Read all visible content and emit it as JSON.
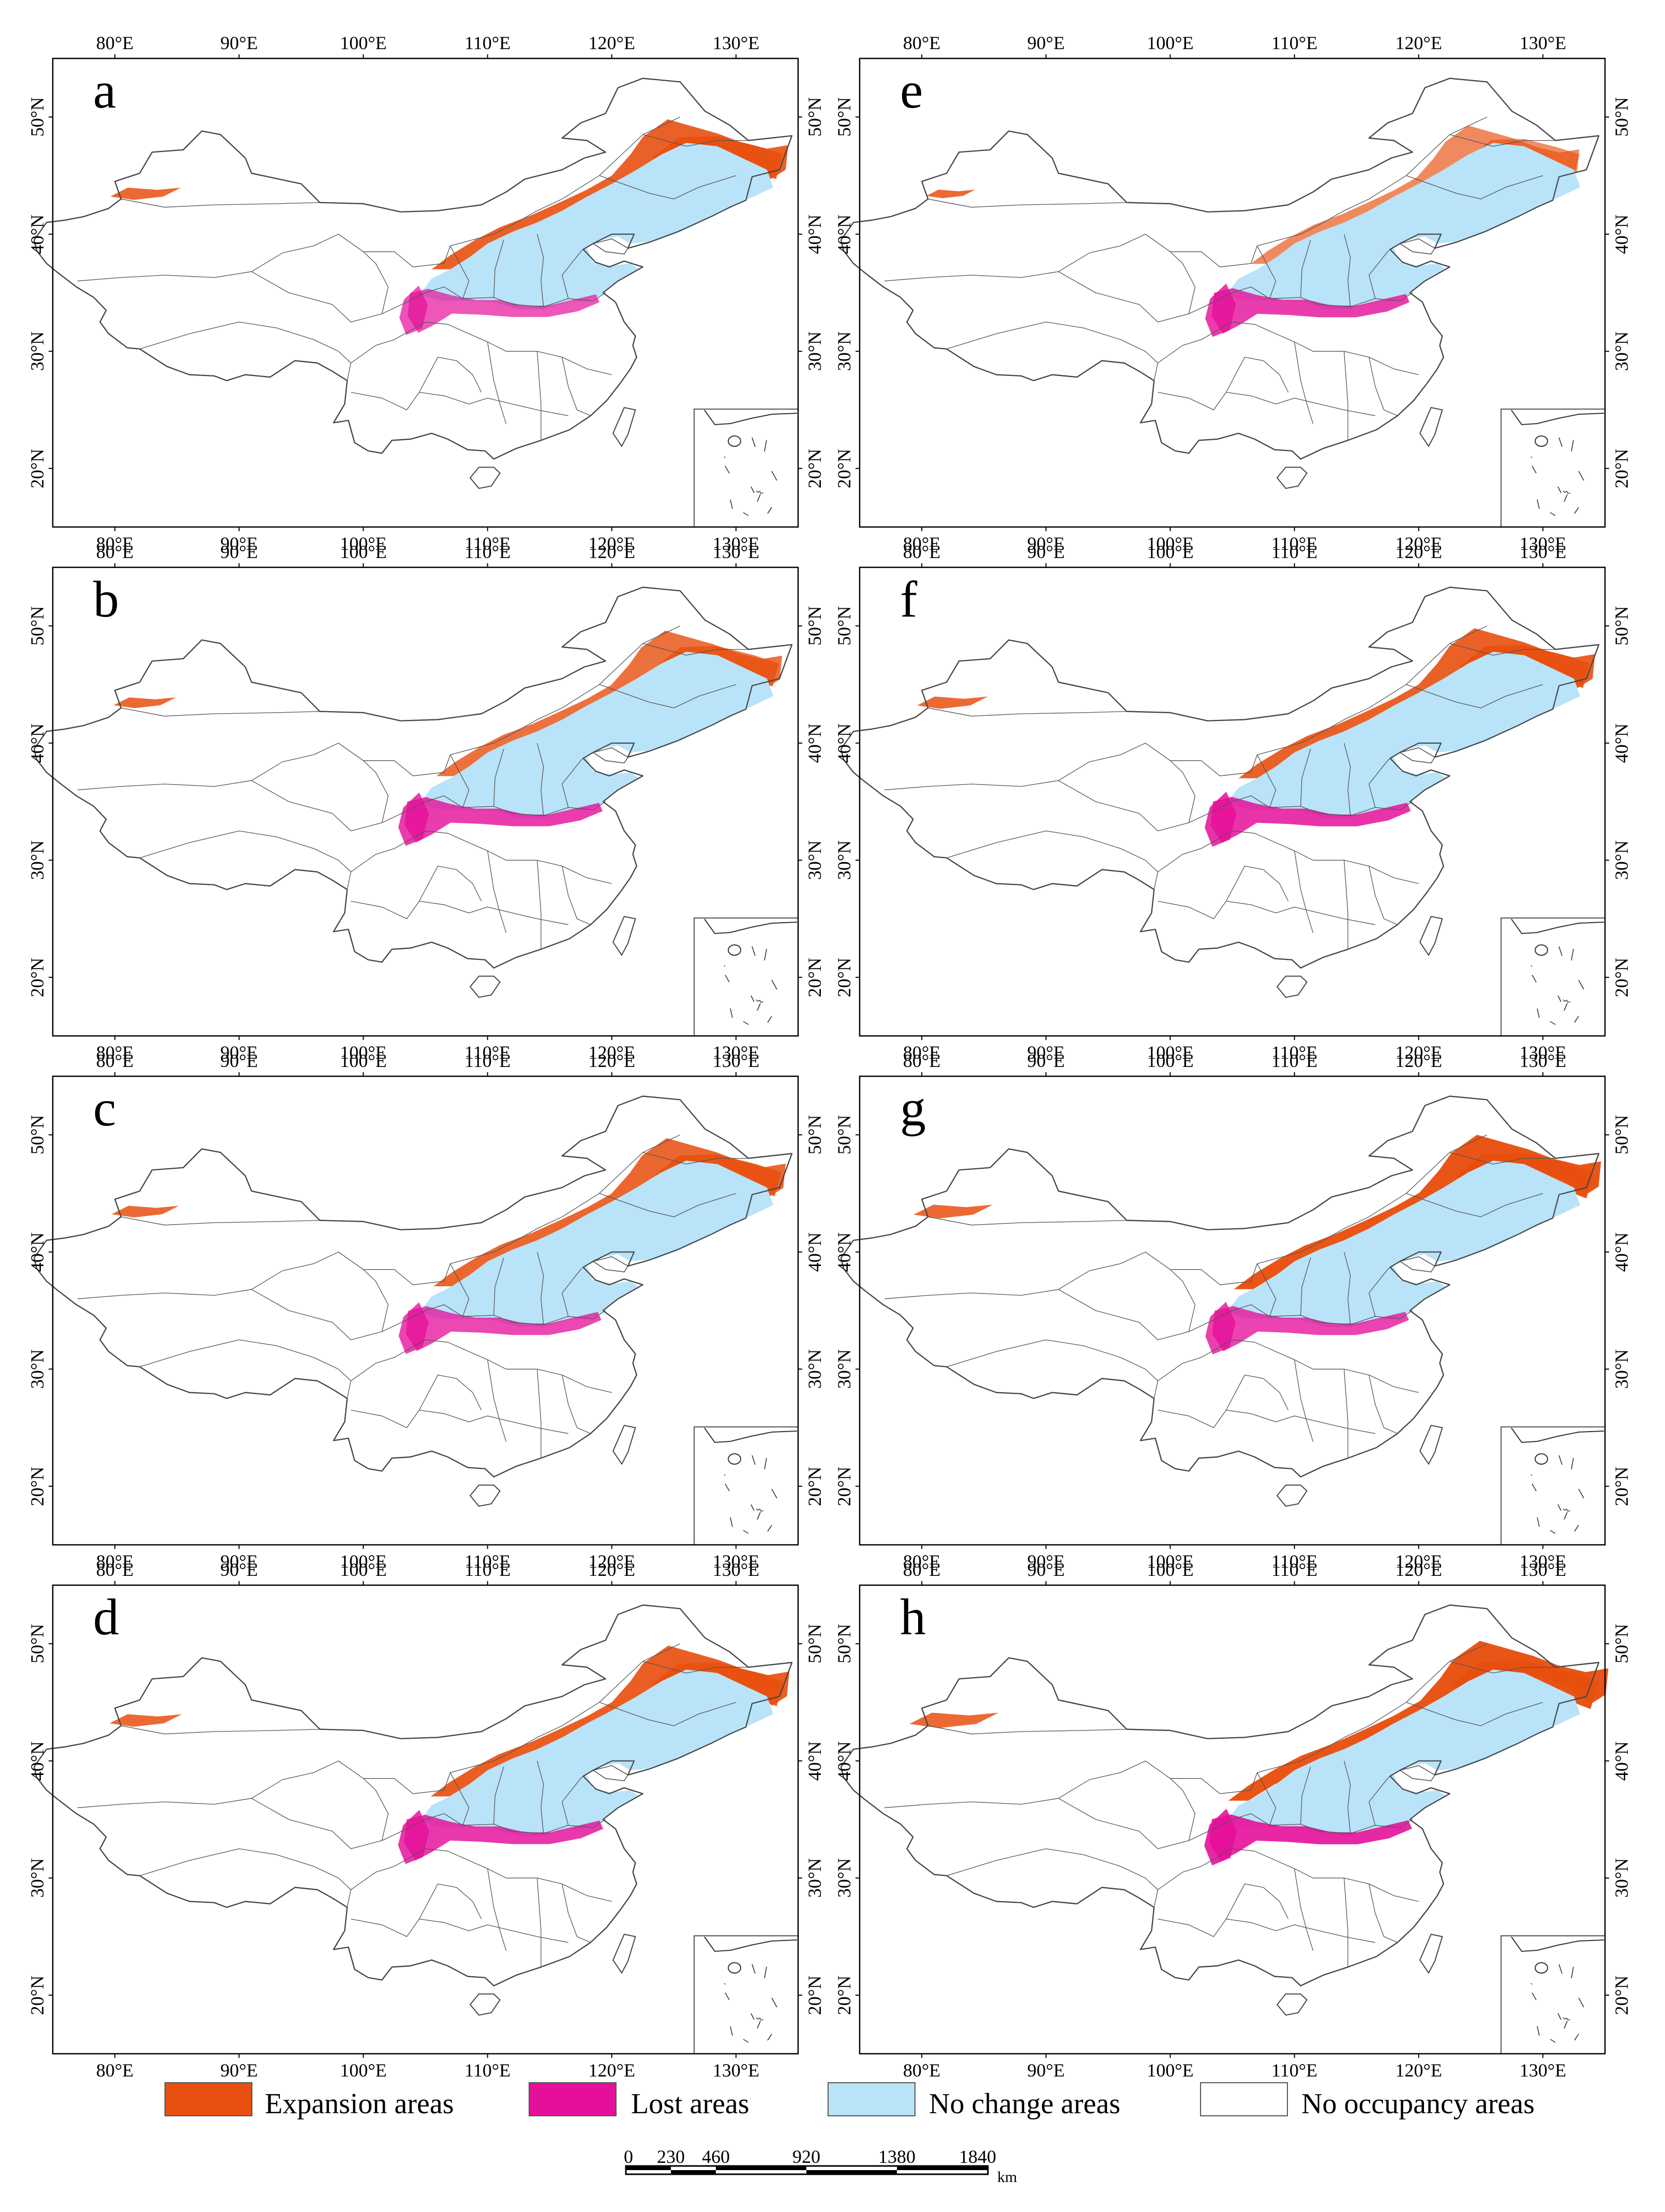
{
  "figure": {
    "lon_ticks": [
      "80°E",
      "90°E",
      "100°E",
      "110°E",
      "120°E",
      "130°E"
    ],
    "lat_ticks": [
      "20°N",
      "30°N",
      "40°N",
      "50°N"
    ],
    "panels": [
      {
        "label": "a",
        "expansion": 1.0,
        "loss": 0.55
      },
      {
        "label": "b",
        "expansion": 0.75,
        "loss": 0.8
      },
      {
        "label": "c",
        "expansion": 0.9,
        "loss": 0.7
      },
      {
        "label": "d",
        "expansion": 1.05,
        "loss": 0.85
      },
      {
        "label": "e",
        "expansion": 0.35,
        "loss": 0.8
      },
      {
        "label": "f",
        "expansion": 1.0,
        "loss": 0.9
      },
      {
        "label": "g",
        "expansion": 1.25,
        "loss": 0.75
      },
      {
        "label": "h",
        "expansion": 1.55,
        "loss": 1.0
      }
    ]
  },
  "legend": {
    "items": [
      {
        "label": "Expansion areas",
        "color": "#e8500f"
      },
      {
        "label": "Lost areas",
        "color": "#e5109a"
      },
      {
        "label": "No change areas",
        "color": "#b9e3f8"
      },
      {
        "label": "No occupancy areas",
        "color": "#ffffff"
      }
    ]
  },
  "scale_bar": {
    "ticks": [
      "0",
      "230",
      "460",
      "920",
      "1380",
      "1840"
    ],
    "unit": "km"
  },
  "colors": {
    "expansion": "#e8500f",
    "lost": "#e5109a",
    "no_change": "#b9e3f8",
    "boundary": "#555555"
  }
}
